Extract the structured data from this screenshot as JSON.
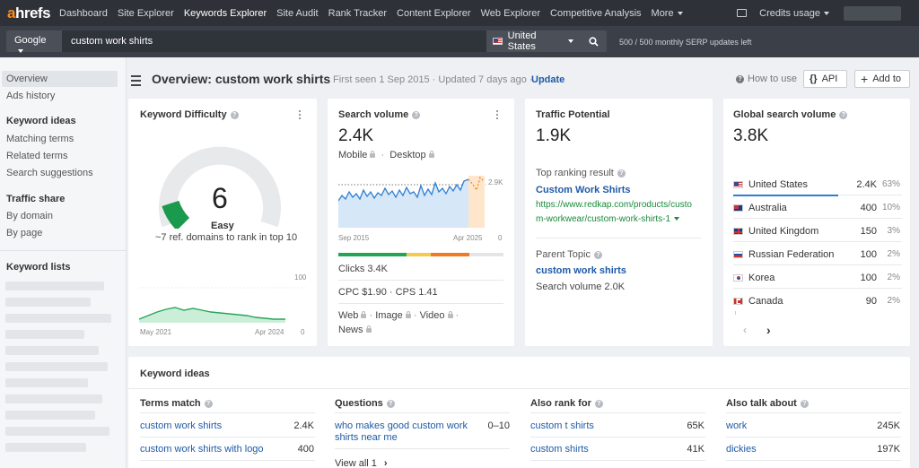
{
  "topnav": {
    "logo_a": "a",
    "logo_rest": "hrefs",
    "items": [
      "Dashboard",
      "Site Explorer",
      "Keywords Explorer",
      "Site Audit",
      "Rank Tracker",
      "Content Explorer",
      "Web Explorer",
      "Competitive Analysis",
      "More"
    ],
    "active_index": 2,
    "credits_label": "Credits usage"
  },
  "search": {
    "engine": "Google",
    "query": "custom work shirts",
    "country": "United States",
    "serp_left": "500  /  500  monthly SERP updates left"
  },
  "sidebar": {
    "overview": "Overview",
    "ads_history": "Ads history",
    "keyword_ideas_head": "Keyword ideas",
    "matching_terms": "Matching terms",
    "related_terms": "Related terms",
    "search_suggestions": "Search suggestions",
    "traffic_share_head": "Traffic share",
    "by_domain": "By domain",
    "by_page": "By page",
    "keyword_lists_head": "Keyword lists"
  },
  "header": {
    "title": "Overview: custom work shirts",
    "first_seen": "First seen 1 Sep 2015 · Updated 7 days ago ·",
    "update": "Update",
    "how_to_use": "How to use",
    "api": "API",
    "add_to": "Add to"
  },
  "kd": {
    "title": "Keyword Difficulty",
    "value": "6",
    "value_fraction": 0.06,
    "label": "Easy",
    "subtitle": "~7 ref. domains to rank in top 10",
    "chart_ymax": "100",
    "chart_ymin": "0",
    "chart_start": "May 2021",
    "chart_end": "Apr 2024"
  },
  "sv": {
    "title": "Search volume",
    "value": "2.4K",
    "mobile": "Mobile",
    "desktop": "Desktop",
    "chart_label": "2.9K",
    "chart_start": "Sep 2015",
    "chart_end": "Apr 2025",
    "chart_zero": "0",
    "clicks": "Clicks 3.4K",
    "cpc_cps": "CPC $1.90  ·  CPS 1.41",
    "types1": [
      "Web",
      "Image",
      "Video"
    ],
    "types2": "News"
  },
  "tp": {
    "title": "Traffic Potential",
    "value": "1.9K",
    "top_result_label": "Top ranking result",
    "top_result_title": "Custom Work Shirts",
    "top_result_url1": "https://www.redkap.com/products/custo",
    "top_result_url2": "m-workwear/custom-work-shirts-1",
    "parent_label": "Parent Topic",
    "parent_topic": "custom work shirts",
    "parent_volume": "Search volume 2.0K"
  },
  "gv": {
    "title": "Global search volume",
    "value": "3.8K",
    "rows": [
      {
        "country": "United States",
        "volume": "2.4K",
        "pct": "63%"
      },
      {
        "country": "Australia",
        "volume": "400",
        "pct": "10%"
      },
      {
        "country": "United Kingdom",
        "volume": "150",
        "pct": "3%"
      },
      {
        "country": "Russian Federation",
        "volume": "100",
        "pct": "2%"
      },
      {
        "country": "Korea",
        "volume": "100",
        "pct": "2%"
      },
      {
        "country": "Canada",
        "volume": "90",
        "pct": "2%"
      }
    ]
  },
  "ki": {
    "title": "Keyword ideas",
    "terms_match": {
      "head": "Terms match",
      "rows": [
        {
          "kw": "custom work shirts",
          "v": "2.4K"
        },
        {
          "kw": "custom work shirts with logo",
          "v": "400"
        }
      ]
    },
    "questions": {
      "head": "Questions",
      "rows": [
        {
          "kw1": "who makes good custom work",
          "kw2": "shirts near me",
          "v": "0–10"
        }
      ],
      "view_all": "View all 1"
    },
    "also_rank": {
      "head": "Also rank for",
      "rows": [
        {
          "kw": "custom t shirts",
          "v": "65K"
        },
        {
          "kw": "custom shirts",
          "v": "41K"
        }
      ]
    },
    "also_talk": {
      "head": "Also talk about",
      "rows": [
        {
          "kw": "work",
          "v": "245K"
        },
        {
          "kw": "dickies",
          "v": "197K"
        }
      ]
    }
  },
  "colors": {
    "accent_orange": "#ff8a16",
    "kd_green": "#1a9a4d",
    "link_blue": "#1e5aa8",
    "url_green": "#1a8a3a"
  }
}
